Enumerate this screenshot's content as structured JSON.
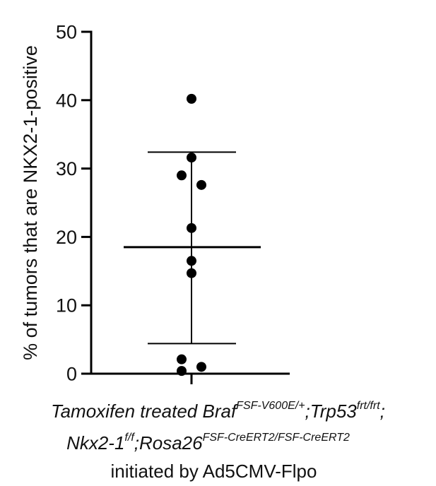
{
  "chart_data": {
    "type": "scatter",
    "title": "",
    "ylabel": "% of tumors that are NKX2-1-positive",
    "ylim": [
      0,
      50
    ],
    "yticks": [
      0,
      10,
      20,
      30,
      40,
      50
    ],
    "group": {
      "line1": {
        "a": "Tamoxifen treated Braf",
        "a_sup": "FSF-V600E/+",
        "b": ";Trp53",
        "b_sup": "frt/frt",
        "c": ";"
      },
      "line2": {
        "a": "Nkx2-1",
        "a_sup": "f/f",
        "b": ";Rosa26",
        "b_sup": "FSF-CreERT2/FSF-CreERT2"
      },
      "line3": "initiated by Ad5CMV-Flpo"
    },
    "points": [
      40.2,
      31.6,
      29.0,
      27.6,
      21.3,
      16.5,
      14.7,
      2.1,
      1.0,
      0.4
    ],
    "mean": 18.5,
    "sd_upper": 32.4,
    "sd_lower": 4.4,
    "colors": {
      "points": "#000000",
      "axes": "#000000"
    }
  }
}
